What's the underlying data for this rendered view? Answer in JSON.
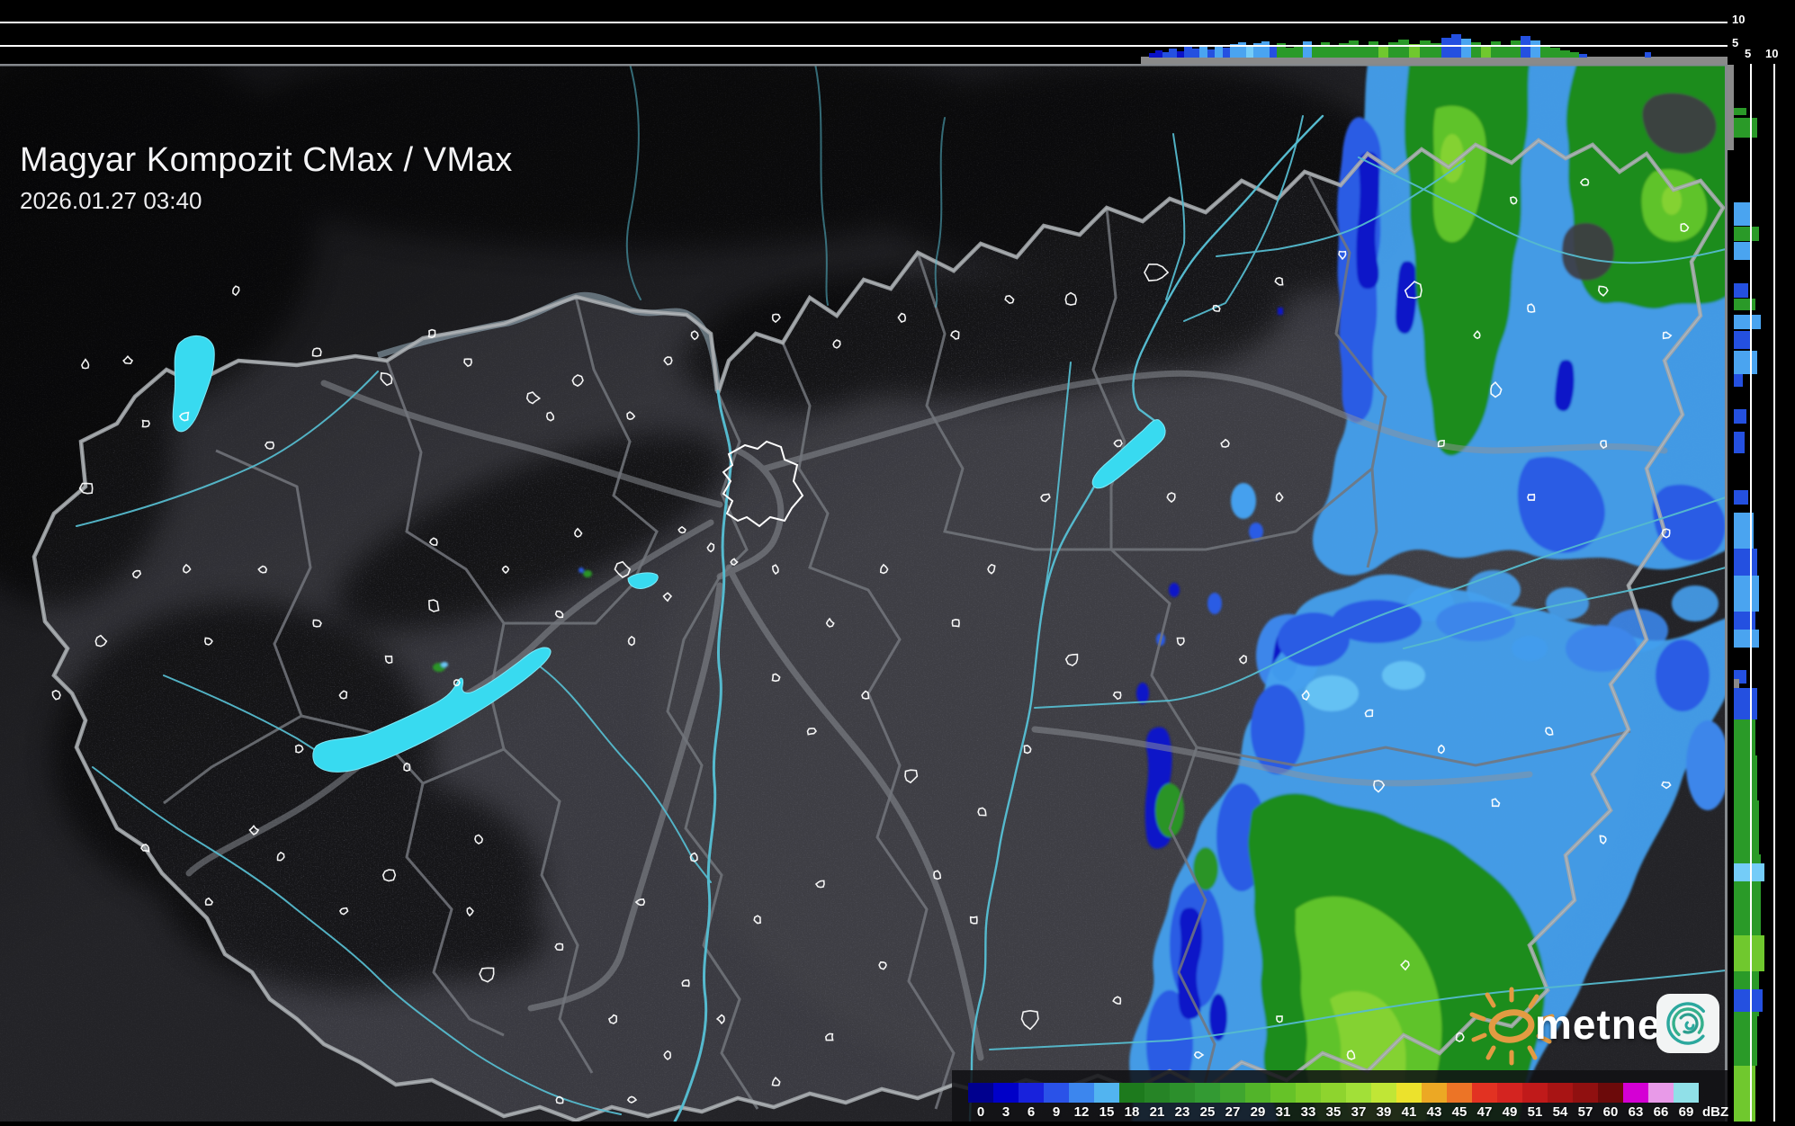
{
  "header": {
    "title": "Magyar Kompozit CMax / VMax",
    "timestamp": "2026.01.27 03:40"
  },
  "profiles": {
    "top_axis": [
      "10",
      "5"
    ],
    "right_axis": [
      "5",
      "10"
    ]
  },
  "scale": {
    "unit": "dBZ",
    "levels": [
      "0",
      "3",
      "6",
      "9",
      "12",
      "15",
      "18",
      "21",
      "23",
      "25",
      "27",
      "29",
      "31",
      "33",
      "35",
      "37",
      "39",
      "41",
      "43",
      "45",
      "47",
      "49",
      "51",
      "54",
      "57",
      "60",
      "63",
      "66",
      "69"
    ],
    "colors": [
      "#00008e",
      "#0000c8",
      "#1822dc",
      "#2a52e8",
      "#3c86ee",
      "#52b4f0",
      "#1d7a1d",
      "#268426",
      "#2c8f2c",
      "#339a33",
      "#3fa52f",
      "#52b42a",
      "#66c228",
      "#7ccc2a",
      "#8ed42e",
      "#a2e038",
      "#c0e636",
      "#ece22c",
      "#eca824",
      "#ec7426",
      "#e23222",
      "#d42420",
      "#c01a1a",
      "#a81414",
      "#901010",
      "#6c0a0a",
      "#d400d4",
      "#e89ae8",
      "#90e0e8"
    ]
  },
  "logo": {
    "text": "metnet"
  },
  "colors": {
    "lake": "#38daf0",
    "river": "#55bace",
    "country_border": "#a2a6aa",
    "echo_light_blue": "#45a0ee",
    "echo_green": "#1e8c1e"
  }
}
